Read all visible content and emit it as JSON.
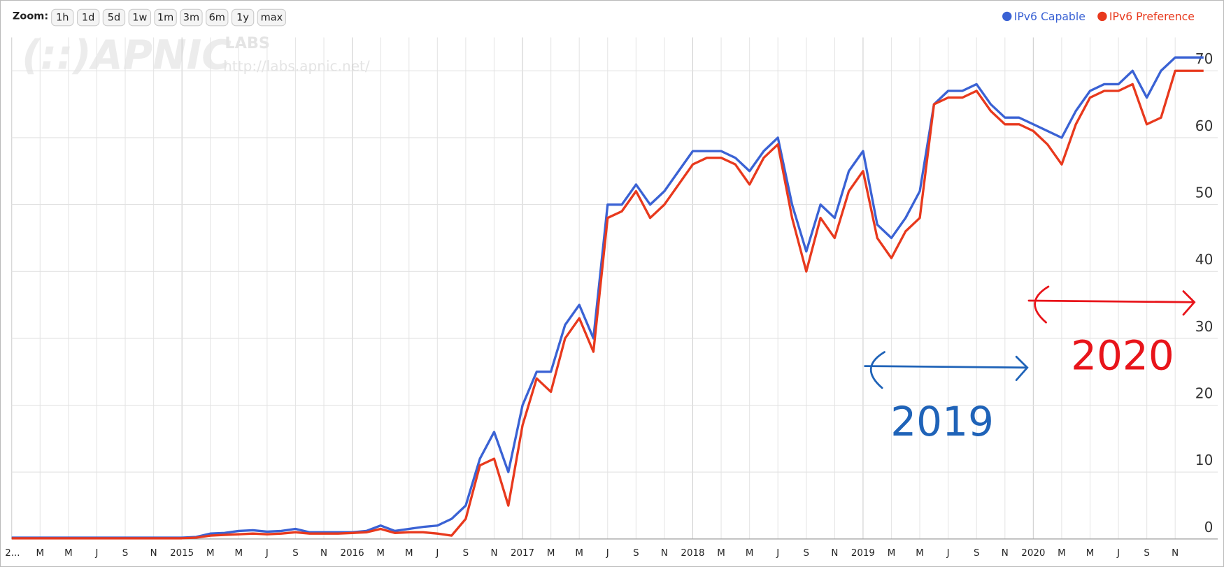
{
  "chart_data": {
    "type": "line",
    "zoom": {
      "label": "Zoom:",
      "buttons": [
        "1h",
        "1d",
        "5d",
        "1w",
        "1m",
        "3m",
        "6m",
        "1y",
        "max"
      ]
    },
    "watermark": [
      "(::)APNIC",
      "LABS",
      "http://labs.apnic.net/"
    ],
    "x": [
      "2014-01",
      "2014-02",
      "2014-03",
      "2014-04",
      "2014-05",
      "2014-06",
      "2014-07",
      "2014-08",
      "2014-09",
      "2014-10",
      "2014-11",
      "2014-12",
      "2015-01",
      "2015-02",
      "2015-03",
      "2015-04",
      "2015-05",
      "2015-06",
      "2015-07",
      "2015-08",
      "2015-09",
      "2015-10",
      "2015-11",
      "2015-12",
      "2016-01",
      "2016-02",
      "2016-03",
      "2016-04",
      "2016-05",
      "2016-06",
      "2016-07",
      "2016-08",
      "2016-09",
      "2016-10",
      "2016-11",
      "2016-12",
      "2017-01",
      "2017-02",
      "2017-03",
      "2017-04",
      "2017-05",
      "2017-06",
      "2017-07",
      "2017-08",
      "2017-09",
      "2017-10",
      "2017-11",
      "2017-12",
      "2018-01",
      "2018-02",
      "2018-03",
      "2018-04",
      "2018-05",
      "2018-06",
      "2018-07",
      "2018-08",
      "2018-09",
      "2018-10",
      "2018-11",
      "2018-12",
      "2019-01",
      "2019-02",
      "2019-03",
      "2019-04",
      "2019-05",
      "2019-06",
      "2019-07",
      "2019-08",
      "2019-09",
      "2019-10",
      "2019-11",
      "2019-12",
      "2020-01",
      "2020-02",
      "2020-03",
      "2020-04",
      "2020-05",
      "2020-06",
      "2020-07",
      "2020-08",
      "2020-09",
      "2020-10",
      "2020-11",
      "2020-12",
      "2021-01"
    ],
    "series": [
      {
        "name": "IPv6 Capable",
        "color": "#3a62d4",
        "values": [
          0.2,
          0.2,
          0.2,
          0.2,
          0.2,
          0.2,
          0.2,
          0.2,
          0.2,
          0.2,
          0.2,
          0.2,
          0.2,
          0.3,
          0.8,
          0.9,
          1.2,
          1.3,
          1.1,
          1.2,
          1.5,
          1.0,
          1.0,
          1.0,
          1.0,
          1.2,
          2.0,
          1.2,
          1.5,
          1.8,
          2.0,
          3.0,
          5.0,
          12,
          16,
          10,
          20,
          25,
          25,
          32,
          35,
          30,
          50,
          50,
          53,
          50,
          52,
          55,
          58,
          58,
          58,
          57,
          55,
          58,
          60,
          50,
          43,
          50,
          48,
          55,
          58,
          47,
          45,
          48,
          52,
          65,
          67,
          67,
          68,
          65,
          63,
          63,
          62,
          61,
          60,
          64,
          67,
          68,
          68,
          70,
          66,
          70,
          72,
          72,
          72
        ]
      },
      {
        "name": "IPv6 Preference",
        "color": "#e8391d",
        "values": [
          0.1,
          0.1,
          0.1,
          0.1,
          0.1,
          0.1,
          0.1,
          0.1,
          0.1,
          0.1,
          0.1,
          0.1,
          0.1,
          0.2,
          0.5,
          0.6,
          0.7,
          0.8,
          0.7,
          0.8,
          1.0,
          0.8,
          0.8,
          0.8,
          0.9,
          1.0,
          1.5,
          0.9,
          1.0,
          1.0,
          0.8,
          0.5,
          3,
          11,
          12,
          5,
          17,
          24,
          22,
          30,
          33,
          28,
          48,
          49,
          52,
          48,
          50,
          53,
          56,
          57,
          57,
          56,
          53,
          57,
          59,
          48,
          40,
          48,
          45,
          52,
          55,
          45,
          42,
          46,
          48,
          65,
          66,
          66,
          67,
          64,
          62,
          62,
          61,
          59,
          56,
          62,
          66,
          67,
          67,
          68,
          62,
          63,
          70,
          70,
          70
        ]
      }
    ],
    "xlim": [
      "2014-01",
      "2021-02"
    ],
    "xticks": [
      {
        "value": "2014-01",
        "label": "2..."
      },
      {
        "value": "2014-03",
        "label": "M"
      },
      {
        "value": "2014-05",
        "label": "M"
      },
      {
        "value": "2014-07",
        "label": "J"
      },
      {
        "value": "2014-09",
        "label": "S"
      },
      {
        "value": "2014-11",
        "label": "N"
      },
      {
        "value": "2015-01",
        "label": "2015"
      },
      {
        "value": "2015-03",
        "label": "M"
      },
      {
        "value": "2015-05",
        "label": "M"
      },
      {
        "value": "2015-07",
        "label": "J"
      },
      {
        "value": "2015-09",
        "label": "S"
      },
      {
        "value": "2015-11",
        "label": "N"
      },
      {
        "value": "2016-01",
        "label": "2016"
      },
      {
        "value": "2016-03",
        "label": "M"
      },
      {
        "value": "2016-05",
        "label": "M"
      },
      {
        "value": "2016-07",
        "label": "J"
      },
      {
        "value": "2016-09",
        "label": "S"
      },
      {
        "value": "2016-11",
        "label": "N"
      },
      {
        "value": "2017-01",
        "label": "2017"
      },
      {
        "value": "2017-03",
        "label": "M"
      },
      {
        "value": "2017-05",
        "label": "M"
      },
      {
        "value": "2017-07",
        "label": "J"
      },
      {
        "value": "2017-09",
        "label": "S"
      },
      {
        "value": "2017-11",
        "label": "N"
      },
      {
        "value": "2018-01",
        "label": "2018"
      },
      {
        "value": "2018-03",
        "label": "M"
      },
      {
        "value": "2018-05",
        "label": "M"
      },
      {
        "value": "2018-07",
        "label": "J"
      },
      {
        "value": "2018-09",
        "label": "S"
      },
      {
        "value": "2018-11",
        "label": "N"
      },
      {
        "value": "2019-01",
        "label": "2019"
      },
      {
        "value": "2019-03",
        "label": "M"
      },
      {
        "value": "2019-05",
        "label": "M"
      },
      {
        "value": "2019-07",
        "label": "J"
      },
      {
        "value": "2019-09",
        "label": "S"
      },
      {
        "value": "2019-11",
        "label": "N"
      },
      {
        "value": "2020-01",
        "label": "2020"
      },
      {
        "value": "2020-03",
        "label": "M"
      },
      {
        "value": "2020-05",
        "label": "M"
      },
      {
        "value": "2020-07",
        "label": "J"
      },
      {
        "value": "2020-09",
        "label": "S"
      },
      {
        "value": "2020-11",
        "label": "N"
      }
    ],
    "ylim": [
      0,
      75
    ],
    "yticks": [
      0,
      10,
      20,
      30,
      40,
      50,
      60,
      70
    ],
    "grid": true,
    "legend": "top-right",
    "annotations": [
      {
        "text": "2019",
        "color": "#1f63b8"
      },
      {
        "text": "2020",
        "color": "#e8141a"
      }
    ]
  }
}
